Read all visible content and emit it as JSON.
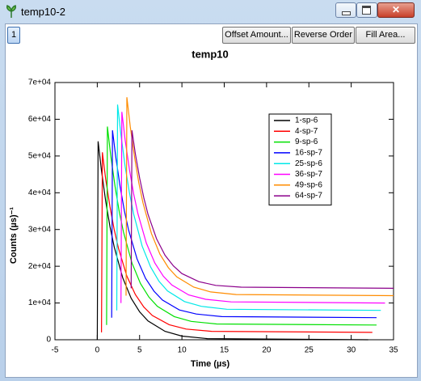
{
  "window": {
    "title": "temp10-2",
    "tab": "1",
    "buttons": [
      "Offset Amount...",
      "Reverse Order",
      "Fill Area..."
    ]
  },
  "chart_data": {
    "type": "line",
    "title": "temp10",
    "x_label": "Time (µs)",
    "y_label": "Counts (µs)⁻¹",
    "xlim": [
      -5,
      35
    ],
    "xticks": [
      -5,
      0,
      5,
      10,
      15,
      20,
      25,
      30,
      35
    ],
    "ylim": [
      0,
      70000
    ],
    "yticks": [
      0,
      {
        "value": 10000,
        "label": "1e+04"
      },
      {
        "value": 20000,
        "label": "2e+04"
      },
      {
        "value": 30000,
        "label": "3e+04"
      },
      {
        "value": 40000,
        "label": "4e+04"
      },
      {
        "value": 50000,
        "label": "5e+04"
      },
      {
        "value": 60000,
        "label": "6e+04"
      },
      {
        "value": 70000,
        "label": "7e+04"
      }
    ],
    "grid": false,
    "legend": "upper right",
    "series": [
      {
        "name": "1-sp-6",
        "color": "#000000",
        "x": [
          0,
          0.1,
          0.5,
          1,
          1.5,
          2,
          3,
          4,
          5,
          6,
          8,
          10,
          13,
          32
        ],
        "values": [
          0,
          54000,
          46000,
          37700,
          30800,
          25300,
          16900,
          11300,
          7600,
          5100,
          2300,
          1000,
          300,
          0
        ]
      },
      {
        "name": "4-sp-7",
        "color": "#ff0000",
        "x": [
          0.5,
          0.6,
          1,
          1.5,
          2,
          2.5,
          3.5,
          4.5,
          5.5,
          6.5,
          8.5,
          10.5,
          13.5,
          32.5
        ],
        "values": [
          2000,
          51000,
          43700,
          36200,
          30000,
          24900,
          17300,
          12300,
          8900,
          6600,
          4100,
          2900,
          2300,
          2000
        ]
      },
      {
        "name": "9-sp-6",
        "color": "#00e000",
        "x": [
          1.1,
          1.2,
          1.6,
          2.1,
          2.6,
          3.1,
          4.1,
          5.1,
          6.1,
          7.1,
          9.1,
          11.1,
          14.1,
          33
        ],
        "values": [
          4000,
          58000,
          50000,
          41700,
          34800,
          29300,
          20900,
          15300,
          11600,
          9100,
          6300,
          5000,
          4300,
          4000
        ]
      },
      {
        "name": "16-sp-7",
        "color": "#0000ff",
        "x": [
          1.7,
          1.8,
          2.2,
          2.7,
          3.2,
          3.7,
          4.7,
          5.7,
          6.7,
          7.7,
          9.7,
          11.7,
          14.7,
          33
        ],
        "values": [
          6000,
          57000,
          49500,
          41600,
          35100,
          29900,
          22000,
          16700,
          13200,
          10800,
          8100,
          7000,
          6300,
          6000
        ]
      },
      {
        "name": "25-sp-6",
        "color": "#00e8e8",
        "x": [
          2.3,
          2.4,
          2.8,
          3.3,
          3.8,
          4.3,
          5.3,
          6.3,
          7.3,
          8.3,
          10.3,
          12.3,
          15.3,
          33.5
        ],
        "values": [
          8000,
          64000,
          55700,
          47100,
          40000,
          34200,
          25500,
          19800,
          15900,
          13300,
          10400,
          9100,
          8300,
          8000
        ]
      },
      {
        "name": "36-sp-7",
        "color": "#ff00ff",
        "x": [
          2.8,
          2.9,
          3.3,
          3.8,
          4.3,
          4.8,
          5.8,
          6.8,
          7.8,
          8.8,
          10.8,
          12.8,
          15.8,
          34
        ],
        "values": [
          10000,
          62000,
          54300,
          46300,
          39700,
          34300,
          26300,
          20900,
          17300,
          14900,
          12200,
          11000,
          10300,
          10000
        ]
      },
      {
        "name": "49-sp-6",
        "color": "#ff8c00",
        "x": [
          3.4,
          3.5,
          3.9,
          4.4,
          4.9,
          5.4,
          6.4,
          7.4,
          8.4,
          9.4,
          11.4,
          13.4,
          16.4,
          35
        ],
        "values": [
          12000,
          66000,
          58000,
          49700,
          42800,
          37300,
          28900,
          23300,
          19600,
          17100,
          14300,
          13000,
          12300,
          12000
        ]
      },
      {
        "name": "64-sp-7",
        "color": "#8b008b",
        "x": [
          4,
          4.1,
          4.5,
          5,
          5.5,
          6,
          7,
          8,
          9,
          10,
          12,
          14,
          17,
          35
        ],
        "values": [
          14000,
          57000,
          50600,
          44000,
          38600,
          34100,
          27500,
          23000,
          20100,
          18000,
          15800,
          14800,
          14300,
          14000
        ]
      }
    ]
  }
}
